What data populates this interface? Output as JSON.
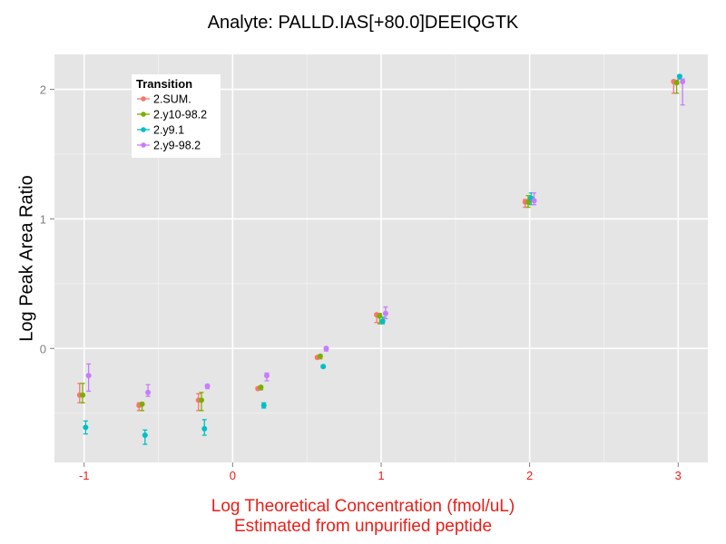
{
  "chart_data": {
    "type": "scatter",
    "title": "Analyte: PALLD.IAS[+80.0]DEEIQGTK",
    "xlabel_line1": "Log Theoretical Concentration (fmol/uL)",
    "xlabel_line2": "Estimated from unpurified peptide",
    "ylabel": "Log Peak Area Ratio",
    "xlim": [
      -1.2,
      3.2
    ],
    "ylim": [
      -0.88,
      2.27
    ],
    "x_ticks": [
      -1,
      0,
      1,
      2,
      3
    ],
    "x_tick_labels": [
      "-1",
      "0",
      "1",
      "2",
      "3"
    ],
    "y_ticks": [
      0,
      1,
      2
    ],
    "y_tick_labels": [
      "0",
      "1",
      "2"
    ],
    "grid": true,
    "legend": {
      "title": "Transition",
      "placement": "top-left-inside"
    },
    "series": [
      {
        "name": "2.SUM.",
        "color": "#F8766D",
        "dodge": -0.03,
        "points": [
          {
            "x": -1.0,
            "y": -0.36,
            "lo": -0.42,
            "hi": -0.27
          },
          {
            "x": -0.6,
            "y": -0.44,
            "lo": -0.48,
            "hi": -0.42
          },
          {
            "x": -0.2,
            "y": -0.4,
            "lo": -0.48,
            "hi": -0.35
          },
          {
            "x": 0.2,
            "y": -0.31,
            "lo": -0.32,
            "hi": -0.3
          },
          {
            "x": 0.6,
            "y": -0.07,
            "lo": -0.08,
            "hi": -0.06
          },
          {
            "x": 1.0,
            "y": 0.26,
            "lo": 0.2,
            "hi": 0.27
          },
          {
            "x": 2.0,
            "y": 1.13,
            "lo": 1.09,
            "hi": 1.15
          },
          {
            "x": 3.0,
            "y": 2.06,
            "lo": 1.97,
            "hi": 2.07
          }
        ]
      },
      {
        "name": "2.y10-98.2",
        "color": "#7CAE00",
        "dodge": -0.01,
        "points": [
          {
            "x": -1.0,
            "y": -0.36,
            "lo": -0.42,
            "hi": -0.27
          },
          {
            "x": -0.6,
            "y": -0.43,
            "lo": -0.48,
            "hi": -0.42
          },
          {
            "x": -0.2,
            "y": -0.4,
            "lo": -0.48,
            "hi": -0.34
          },
          {
            "x": 0.2,
            "y": -0.3,
            "lo": -0.32,
            "hi": -0.29
          },
          {
            "x": 0.6,
            "y": -0.06,
            "lo": -0.08,
            "hi": -0.05
          },
          {
            "x": 1.0,
            "y": 0.25,
            "lo": 0.19,
            "hi": 0.27
          },
          {
            "x": 2.0,
            "y": 1.13,
            "lo": 1.09,
            "hi": 1.18
          },
          {
            "x": 3.0,
            "y": 2.05,
            "lo": 1.97,
            "hi": 2.07
          }
        ]
      },
      {
        "name": "2.y9.1",
        "color": "#00BFC4",
        "dodge": 0.01,
        "points": [
          {
            "x": -1.0,
            "y": -0.61,
            "lo": -0.66,
            "hi": -0.56
          },
          {
            "x": -0.6,
            "y": -0.67,
            "lo": -0.74,
            "hi": -0.63
          },
          {
            "x": -0.2,
            "y": -0.62,
            "lo": -0.67,
            "hi": -0.55
          },
          {
            "x": 0.2,
            "y": -0.44,
            "lo": -0.46,
            "hi": -0.42
          },
          {
            "x": 0.6,
            "y": -0.14,
            "lo": -0.15,
            "hi": -0.13
          },
          {
            "x": 1.0,
            "y": 0.21,
            "lo": 0.19,
            "hi": 0.24
          },
          {
            "x": 2.0,
            "y": 1.16,
            "lo": 1.11,
            "hi": 1.2
          },
          {
            "x": 3.0,
            "y": 2.1,
            "lo": 2.08,
            "hi": 2.11
          }
        ]
      },
      {
        "name": "2.y9-98.2",
        "color": "#C77CFF",
        "dodge": 0.03,
        "points": [
          {
            "x": -1.0,
            "y": -0.21,
            "lo": -0.33,
            "hi": -0.12
          },
          {
            "x": -0.6,
            "y": -0.34,
            "lo": -0.37,
            "hi": -0.28
          },
          {
            "x": -0.2,
            "y": -0.29,
            "lo": -0.31,
            "hi": -0.28
          },
          {
            "x": 0.2,
            "y": -0.21,
            "lo": -0.25,
            "hi": -0.19
          },
          {
            "x": 0.6,
            "y": 0.0,
            "lo": -0.02,
            "hi": 0.01
          },
          {
            "x": 1.0,
            "y": 0.27,
            "lo": 0.23,
            "hi": 0.32
          },
          {
            "x": 2.0,
            "y": 1.14,
            "lo": 1.11,
            "hi": 1.2
          },
          {
            "x": 3.0,
            "y": 2.06,
            "lo": 1.88,
            "hi": 2.08
          }
        ]
      }
    ]
  }
}
